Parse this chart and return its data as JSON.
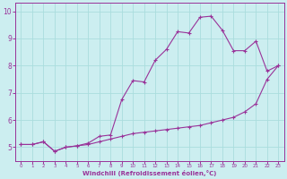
{
  "xlabel": "Windchill (Refroidissement éolien,°C)",
  "bg_color": "#cceef0",
  "grid_color": "#aadddd",
  "line_color": "#993399",
  "spine_color": "#993399",
  "xlim": [
    -0.5,
    23.5
  ],
  "ylim": [
    4.5,
    10.3
  ],
  "yticks": [
    5,
    6,
    7,
    8,
    9,
    10
  ],
  "xticks": [
    0,
    1,
    2,
    3,
    4,
    5,
    6,
    7,
    8,
    9,
    10,
    11,
    12,
    13,
    14,
    15,
    16,
    17,
    18,
    19,
    20,
    21,
    22,
    23
  ],
  "line1_x": [
    0,
    1,
    2,
    3,
    4,
    5,
    6,
    7,
    8,
    9,
    10,
    11,
    12,
    13,
    14,
    15,
    16,
    17,
    18,
    19,
    20,
    21,
    22,
    23
  ],
  "line1_y": [
    5.1,
    5.1,
    5.2,
    4.85,
    5.0,
    5.05,
    5.1,
    5.2,
    5.3,
    5.4,
    5.5,
    5.55,
    5.6,
    5.65,
    5.7,
    5.75,
    5.8,
    5.9,
    6.0,
    6.1,
    6.3,
    6.6,
    7.5,
    8.0
  ],
  "line2_x": [
    0,
    1,
    2,
    3,
    4,
    5,
    6,
    7,
    8,
    9,
    10,
    11,
    12,
    13,
    14,
    15,
    16,
    17,
    18,
    19,
    20,
    21,
    22,
    23
  ],
  "line2_y": [
    5.1,
    5.1,
    5.2,
    4.85,
    5.0,
    5.05,
    5.15,
    5.4,
    5.45,
    6.75,
    7.45,
    7.4,
    8.2,
    8.6,
    9.25,
    9.2,
    9.78,
    9.82,
    9.3,
    8.55,
    8.55,
    8.9,
    7.8,
    8.0
  ]
}
